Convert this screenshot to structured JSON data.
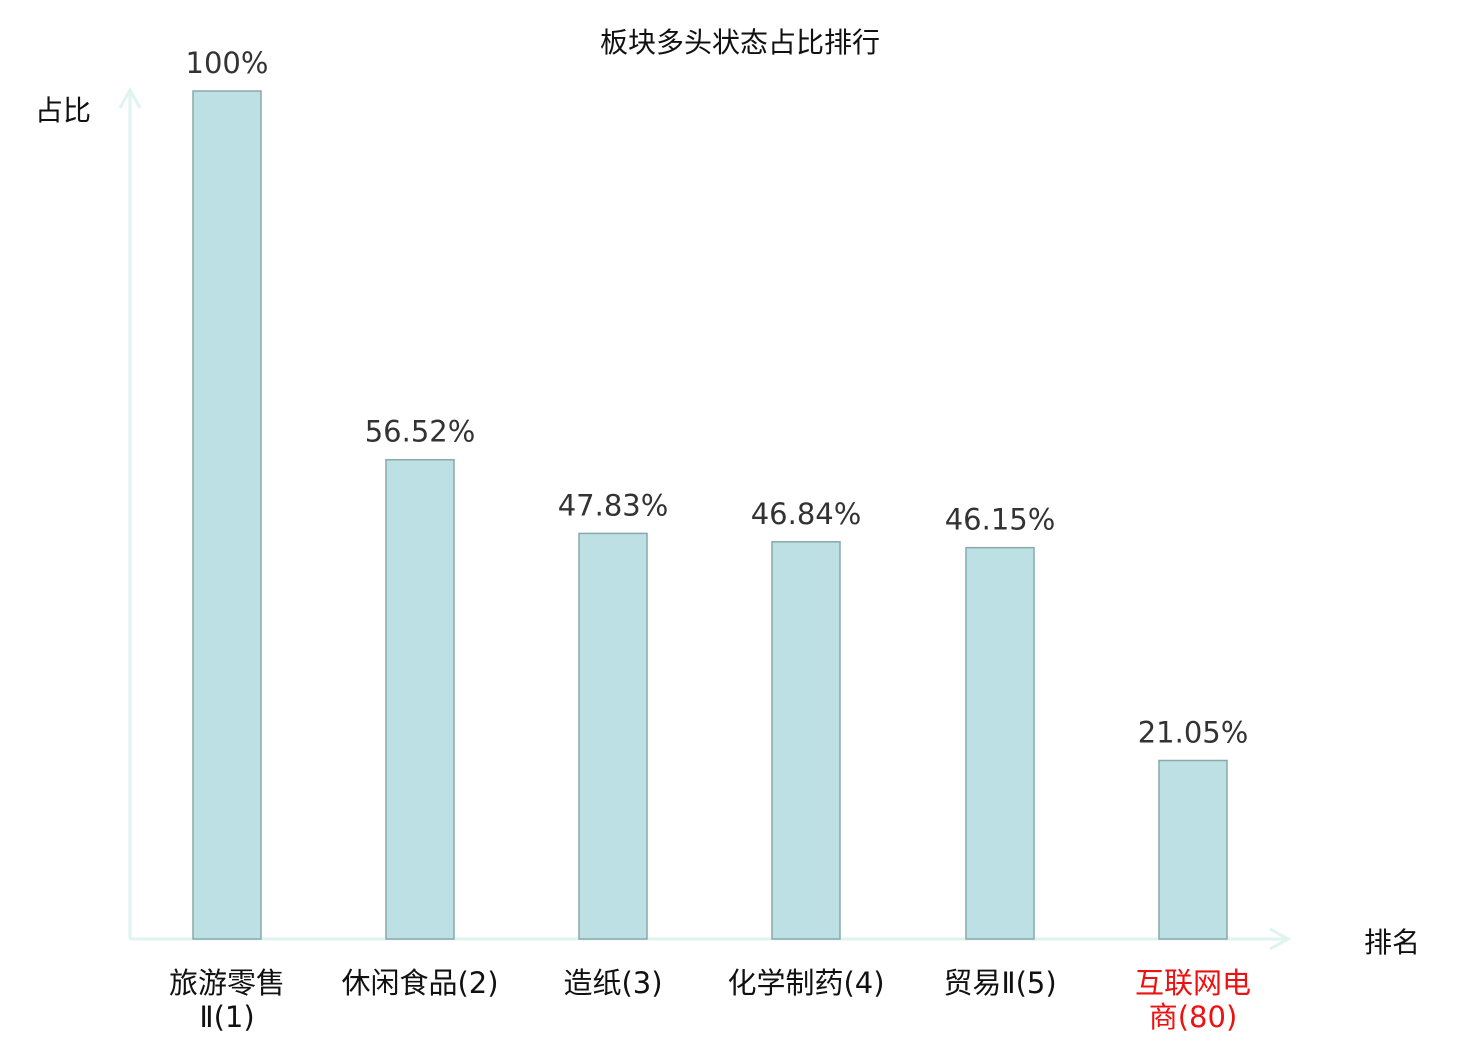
{
  "chart_data": {
    "type": "bar",
    "title": "板块多头状态占比排行",
    "xlabel": "排名",
    "ylabel": "占比",
    "categories": [
      [
        "旅游零售",
        "Ⅱ(1)"
      ],
      [
        "休闲食品(2)"
      ],
      [
        "造纸(3)"
      ],
      [
        "化学制药(4)"
      ],
      [
        "贸易Ⅱ(5)"
      ],
      [
        "互联网电",
        "商(80)"
      ]
    ],
    "values": [
      100,
      56.52,
      47.83,
      46.84,
      46.15,
      21.05
    ],
    "data_labels": [
      "100%",
      "56.52%",
      "47.83%",
      "46.84%",
      "46.15%",
      "21.05%"
    ],
    "highlight_index": 5,
    "ylim": [
      0,
      100
    ],
    "grid": false,
    "colors": {
      "bar_fill": "#bce0e3",
      "bar_stroke": "#8aa8aa",
      "axis": "#dff3f0",
      "highlight_label": "#ee1111",
      "label": "#111111",
      "data_label": "#333333"
    }
  }
}
